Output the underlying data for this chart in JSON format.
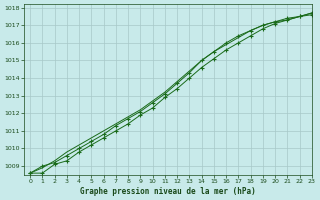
{
  "title": "Graphe pression niveau de la mer (hPa)",
  "background_color": "#c8eaea",
  "grid_color": "#a8c8c8",
  "line_color": "#1a6b1a",
  "xlim": [
    -0.5,
    23
  ],
  "ylim": [
    1008.5,
    1018.2
  ],
  "xticks": [
    0,
    1,
    2,
    3,
    4,
    5,
    6,
    7,
    8,
    9,
    10,
    11,
    12,
    13,
    14,
    15,
    16,
    17,
    18,
    19,
    20,
    21,
    22,
    23
  ],
  "yticks": [
    1009,
    1010,
    1011,
    1012,
    1013,
    1014,
    1015,
    1016,
    1017,
    1018
  ],
  "line1_x": [
    0,
    1,
    2,
    3,
    4,
    5,
    6,
    7,
    8,
    9,
    10,
    11,
    12,
    13,
    14,
    15,
    16,
    17,
    18,
    19,
    20,
    21,
    22,
    23
  ],
  "line1_y": [
    1008.6,
    1008.6,
    1009.1,
    1009.3,
    1009.8,
    1010.2,
    1010.6,
    1011.0,
    1011.4,
    1011.9,
    1012.3,
    1012.9,
    1013.4,
    1014.0,
    1014.6,
    1015.1,
    1015.6,
    1016.0,
    1016.4,
    1016.8,
    1017.1,
    1017.3,
    1017.5,
    1017.6
  ],
  "line2_x": [
    0,
    1,
    2,
    3,
    4,
    5,
    6,
    7,
    8,
    9,
    10,
    11,
    12,
    13,
    14,
    15,
    16,
    17,
    18,
    19,
    20,
    21,
    22,
    23
  ],
  "line2_y": [
    1008.6,
    1009.0,
    1009.2,
    1009.6,
    1010.0,
    1010.4,
    1010.8,
    1011.3,
    1011.7,
    1012.1,
    1012.6,
    1013.1,
    1013.7,
    1014.3,
    1015.0,
    1015.5,
    1016.0,
    1016.4,
    1016.7,
    1017.0,
    1017.2,
    1017.4,
    1017.5,
    1017.7
  ],
  "line3_x": [
    0,
    1,
    2,
    3,
    4,
    5,
    6,
    7,
    8,
    9,
    10,
    11,
    12,
    13,
    14,
    15,
    16,
    17,
    18,
    19,
    20,
    21,
    22,
    23
  ],
  "line3_y": [
    1008.6,
    1008.9,
    1009.3,
    1009.8,
    1010.2,
    1010.6,
    1011.0,
    1011.4,
    1011.8,
    1012.2,
    1012.7,
    1013.2,
    1013.8,
    1014.4,
    1015.0,
    1015.5,
    1015.9,
    1016.3,
    1016.7,
    1017.0,
    1017.2,
    1017.3,
    1017.5,
    1017.7
  ]
}
